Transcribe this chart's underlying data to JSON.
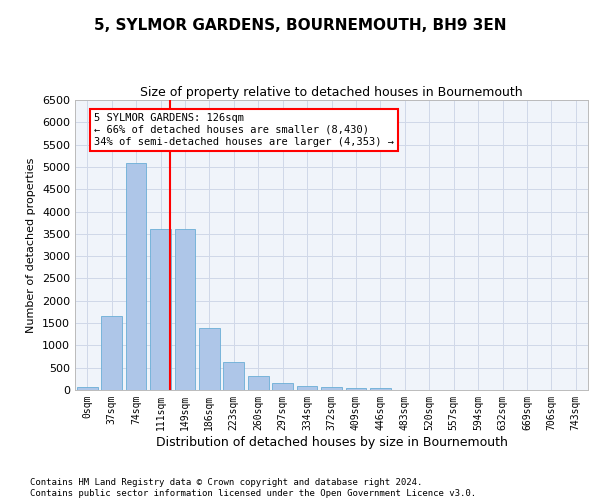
{
  "title": "5, SYLMOR GARDENS, BOURNEMOUTH, BH9 3EN",
  "subtitle": "Size of property relative to detached houses in Bournemouth",
  "xlabel": "Distribution of detached houses by size in Bournemouth",
  "ylabel": "Number of detached properties",
  "bin_labels": [
    "0sqm",
    "37sqm",
    "74sqm",
    "111sqm",
    "149sqm",
    "186sqm",
    "223sqm",
    "260sqm",
    "297sqm",
    "334sqm",
    "372sqm",
    "409sqm",
    "446sqm",
    "483sqm",
    "520sqm",
    "557sqm",
    "594sqm",
    "632sqm",
    "669sqm",
    "706sqm",
    "743sqm"
  ],
  "bar_values": [
    70,
    1650,
    5080,
    3600,
    3600,
    1400,
    620,
    310,
    150,
    90,
    60,
    50,
    50,
    0,
    0,
    0,
    0,
    0,
    0,
    0,
    0
  ],
  "bar_color": "#aec6e8",
  "bar_edgecolor": "#6aaed6",
  "grid_color": "#d0d8e8",
  "background_color": "#f0f4fa",
  "ylim": [
    0,
    6500
  ],
  "yticks": [
    0,
    500,
    1000,
    1500,
    2000,
    2500,
    3000,
    3500,
    4000,
    4500,
    5000,
    5500,
    6000,
    6500
  ],
  "annotation_text_line1": "5 SYLMOR GARDENS: 126sqm",
  "annotation_text_line2": "← 66% of detached houses are smaller (8,430)",
  "annotation_text_line3": "34% of semi-detached houses are larger (4,353) →",
  "footer_line1": "Contains HM Land Registry data © Crown copyright and database right 2024.",
  "footer_line2": "Contains public sector information licensed under the Open Government Licence v3.0.",
  "title_fontsize": 11,
  "subtitle_fontsize": 9,
  "ylabel_fontsize": 8,
  "xlabel_fontsize": 9,
  "ytick_fontsize": 8,
  "xtick_fontsize": 7,
  "ann_fontsize": 7.5,
  "footer_fontsize": 6.5
}
